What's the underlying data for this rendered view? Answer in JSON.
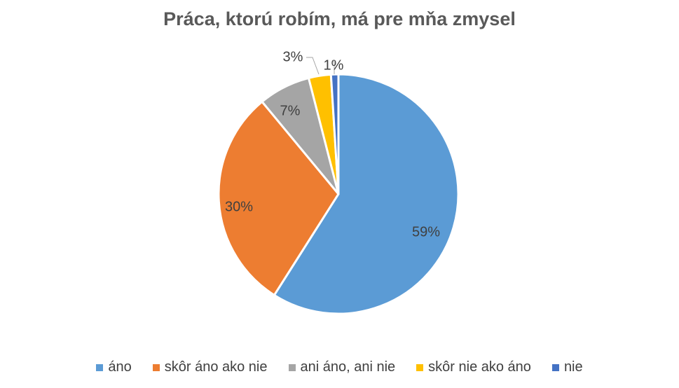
{
  "chart_data": {
    "type": "pie",
    "title": "Práca, ktorú robím, má pre mňa zmysel",
    "slices": [
      {
        "name": "áno",
        "value": 59,
        "label": "59%",
        "color": "#5B9BD5"
      },
      {
        "name": "skôr áno ako nie",
        "value": 30,
        "label": "30%",
        "color": "#ED7D31"
      },
      {
        "name": "ani áno, ani nie",
        "value": 7,
        "label": "7%",
        "color": "#A5A5A5"
      },
      {
        "name": "skôr nie ako áno",
        "value": 3,
        "label": "3%",
        "color": "#FFC000"
      },
      {
        "name": "nie",
        "value": 1,
        "label": "1%",
        "color": "#4472C4"
      }
    ],
    "legend_position": "bottom"
  }
}
